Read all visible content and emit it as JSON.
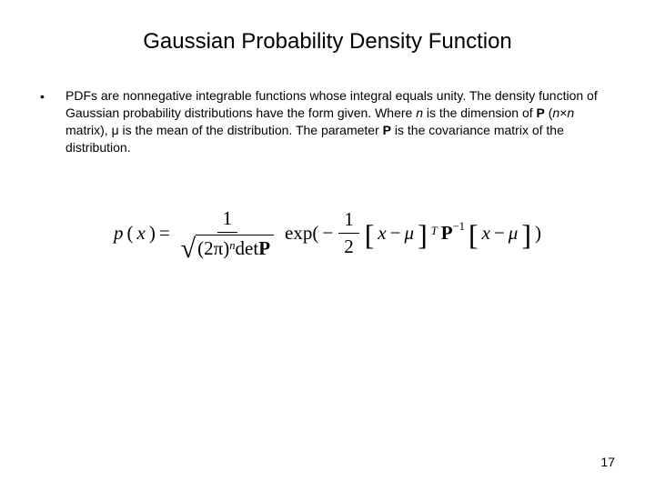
{
  "title": "Gaussian Probability Density Function",
  "bullet": "•",
  "body": {
    "t1": "PDFs are nonnegative integrable functions whose integral equals unity. The density function of Gaussian probability distributions have the form given. Where ",
    "n1": "n",
    "t2": " is the dimension of ",
    "P1": "P",
    "t3": " (",
    "n2": "n",
    "times": "×",
    "n3": "n",
    "t4": " matrix), ",
    "mu": "μ",
    "t5": " is the mean of the distribution. The parameter ",
    "P2": "P",
    "t6": " is the covariance matrix of the distribution."
  },
  "eq": {
    "px": "p",
    "lpar1": "(",
    "x1": "x",
    "rpar1": ")",
    "eq": " = ",
    "one": "1",
    "lpar2": "(",
    "twopi": "2π",
    "rpar2": ")",
    "npow": "n",
    "det": " det ",
    "P": "P",
    "exp": "exp(",
    "minus": "−",
    "half_num": "1",
    "half_den": "2",
    "lb1": "[",
    "x2": "x",
    "minus2": " − ",
    "mu1": "μ",
    "rb1": "]",
    "T": "T",
    "Pinv": "P",
    "neg1": "−1",
    "lb2": "[",
    "x3": "x",
    "minus3": " − ",
    "mu2": "μ",
    "rb2": "]",
    "rpar3": ")"
  },
  "page": "17",
  "colors": {
    "bg": "#ffffff",
    "text": "#000000"
  },
  "fonts": {
    "body": "Arial",
    "math": "Times New Roman",
    "title_size": 24,
    "body_size": 14,
    "eq_size": 21
  }
}
